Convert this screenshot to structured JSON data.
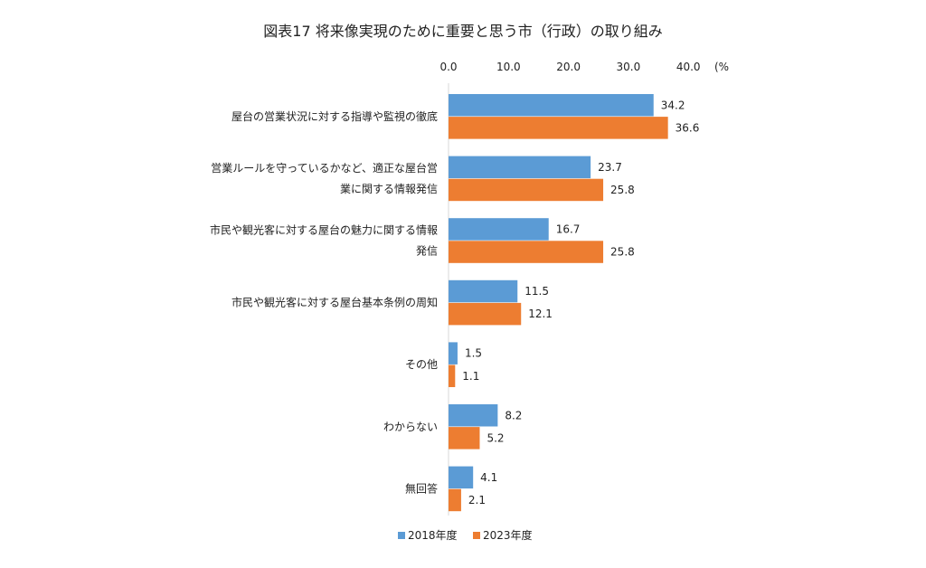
{
  "chart_data": {
    "type": "bar",
    "orientation": "horizontal",
    "title": "図表17 将来像実現のために重要と思う市（行政）の取り組み",
    "x_unit_label": "(%",
    "xlim": [
      0,
      40
    ],
    "x_ticks": [
      "0.0",
      "10.0",
      "20.0",
      "30.0",
      "40.0"
    ],
    "categories": [
      [
        "屋台の営業状況に対する指導や監視の徹底"
      ],
      [
        "営業ルールを守っているかなど、適正な屋台営",
        "業に関する情報発信"
      ],
      [
        "市民や観光客に対する屋台の魅力に関する情報",
        "発信"
      ],
      [
        "市民や観光客に対する屋台基本条例の周知"
      ],
      [
        "その他"
      ],
      [
        "わからない"
      ],
      [
        "無回答"
      ]
    ],
    "series": [
      {
        "name": "2018年度",
        "color": "#5B9BD5",
        "values": [
          34.2,
          23.7,
          16.7,
          11.5,
          1.5,
          8.2,
          4.1
        ]
      },
      {
        "name": "2023年度",
        "color": "#ED7D31",
        "values": [
          36.6,
          25.8,
          25.8,
          12.1,
          1.1,
          5.2,
          2.1
        ]
      }
    ],
    "value_labels": [
      [
        "34.2",
        "23.7",
        "16.7",
        "11.5",
        "1.5",
        "8.2",
        "4.1"
      ],
      [
        "36.6",
        "25.8",
        "25.8",
        "12.1",
        "1.1",
        "5.2",
        "2.1"
      ]
    ],
    "legend_position": "bottom",
    "grid": false
  }
}
